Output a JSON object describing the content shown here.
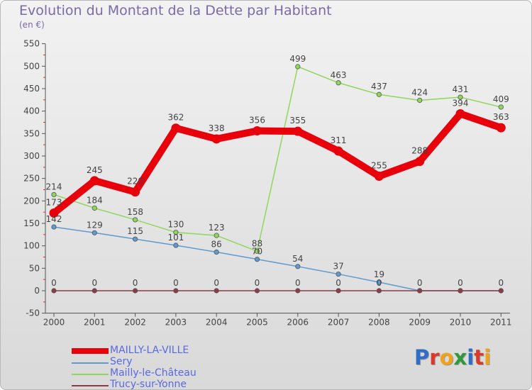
{
  "header": {
    "title": "Evolution du Montant de la Dette par Habitant",
    "subtitle": "(en €)"
  },
  "brand": {
    "letters": [
      "P",
      "r",
      "o",
      "x",
      "i",
      "t",
      "i"
    ],
    "colors": [
      "#2f6ec4",
      "#d93a2b",
      "#f0a21b",
      "#2f9a3a",
      "#2f6ec4",
      "#d93a2b",
      "#f0a21b"
    ]
  },
  "chart_data": {
    "type": "line",
    "title": "Evolution du Montant de la Dette par Habitant",
    "subtitle": "(en €)",
    "xlabel": "",
    "ylabel": "",
    "x": [
      "2000",
      "2001",
      "2002",
      "2003",
      "2004",
      "2005",
      "2006",
      "2007",
      "2008",
      "2009",
      "2010",
      "2011"
    ],
    "ylim": [
      -50,
      550
    ],
    "yticks": [
      "-50",
      "0",
      "50",
      "100",
      "150",
      "200",
      "250",
      "300",
      "350",
      "400",
      "450",
      "500",
      "550"
    ],
    "grid": false,
    "legend_position": "bottom-left",
    "series": [
      {
        "name": "MAILLY-LA-VILLE",
        "color": "#e8000b",
        "emphasis": true,
        "values": [
          173,
          245,
          220,
          362,
          338,
          356,
          355,
          311,
          255,
          288,
          394,
          363
        ],
        "labels": [
          "173",
          "245",
          "220",
          "362",
          "338",
          "356",
          "355",
          "311",
          "255",
          "288",
          "394",
          "363"
        ]
      },
      {
        "name": "Sery",
        "color": "#5d9bd0",
        "emphasis": false,
        "values": [
          142,
          129,
          115,
          101,
          86,
          70,
          54,
          37,
          19,
          0,
          0,
          0
        ],
        "labels": [
          "142",
          "129",
          "115",
          "101",
          "86",
          "70",
          "54",
          "37",
          "19",
          "",
          "",
          ""
        ]
      },
      {
        "name": "Mailly-le-Château",
        "color": "#91d65a",
        "emphasis": false,
        "values": [
          214,
          184,
          158,
          130,
          123,
          88,
          499,
          463,
          437,
          424,
          431,
          409
        ],
        "labels": [
          "214",
          "184",
          "158",
          "130",
          "123",
          "88",
          "499",
          "463",
          "437",
          "424",
          "431",
          "409"
        ]
      },
      {
        "name": "Trucy-sur-Yonne",
        "color": "#8c3b47",
        "emphasis": false,
        "values": [
          0,
          0,
          0,
          0,
          0,
          0,
          0,
          0,
          0,
          0,
          0,
          0
        ],
        "labels": [
          "0",
          "0",
          "0",
          "0",
          "0",
          "0",
          "0",
          "0",
          "0",
          "0",
          "0",
          "0"
        ]
      }
    ]
  }
}
